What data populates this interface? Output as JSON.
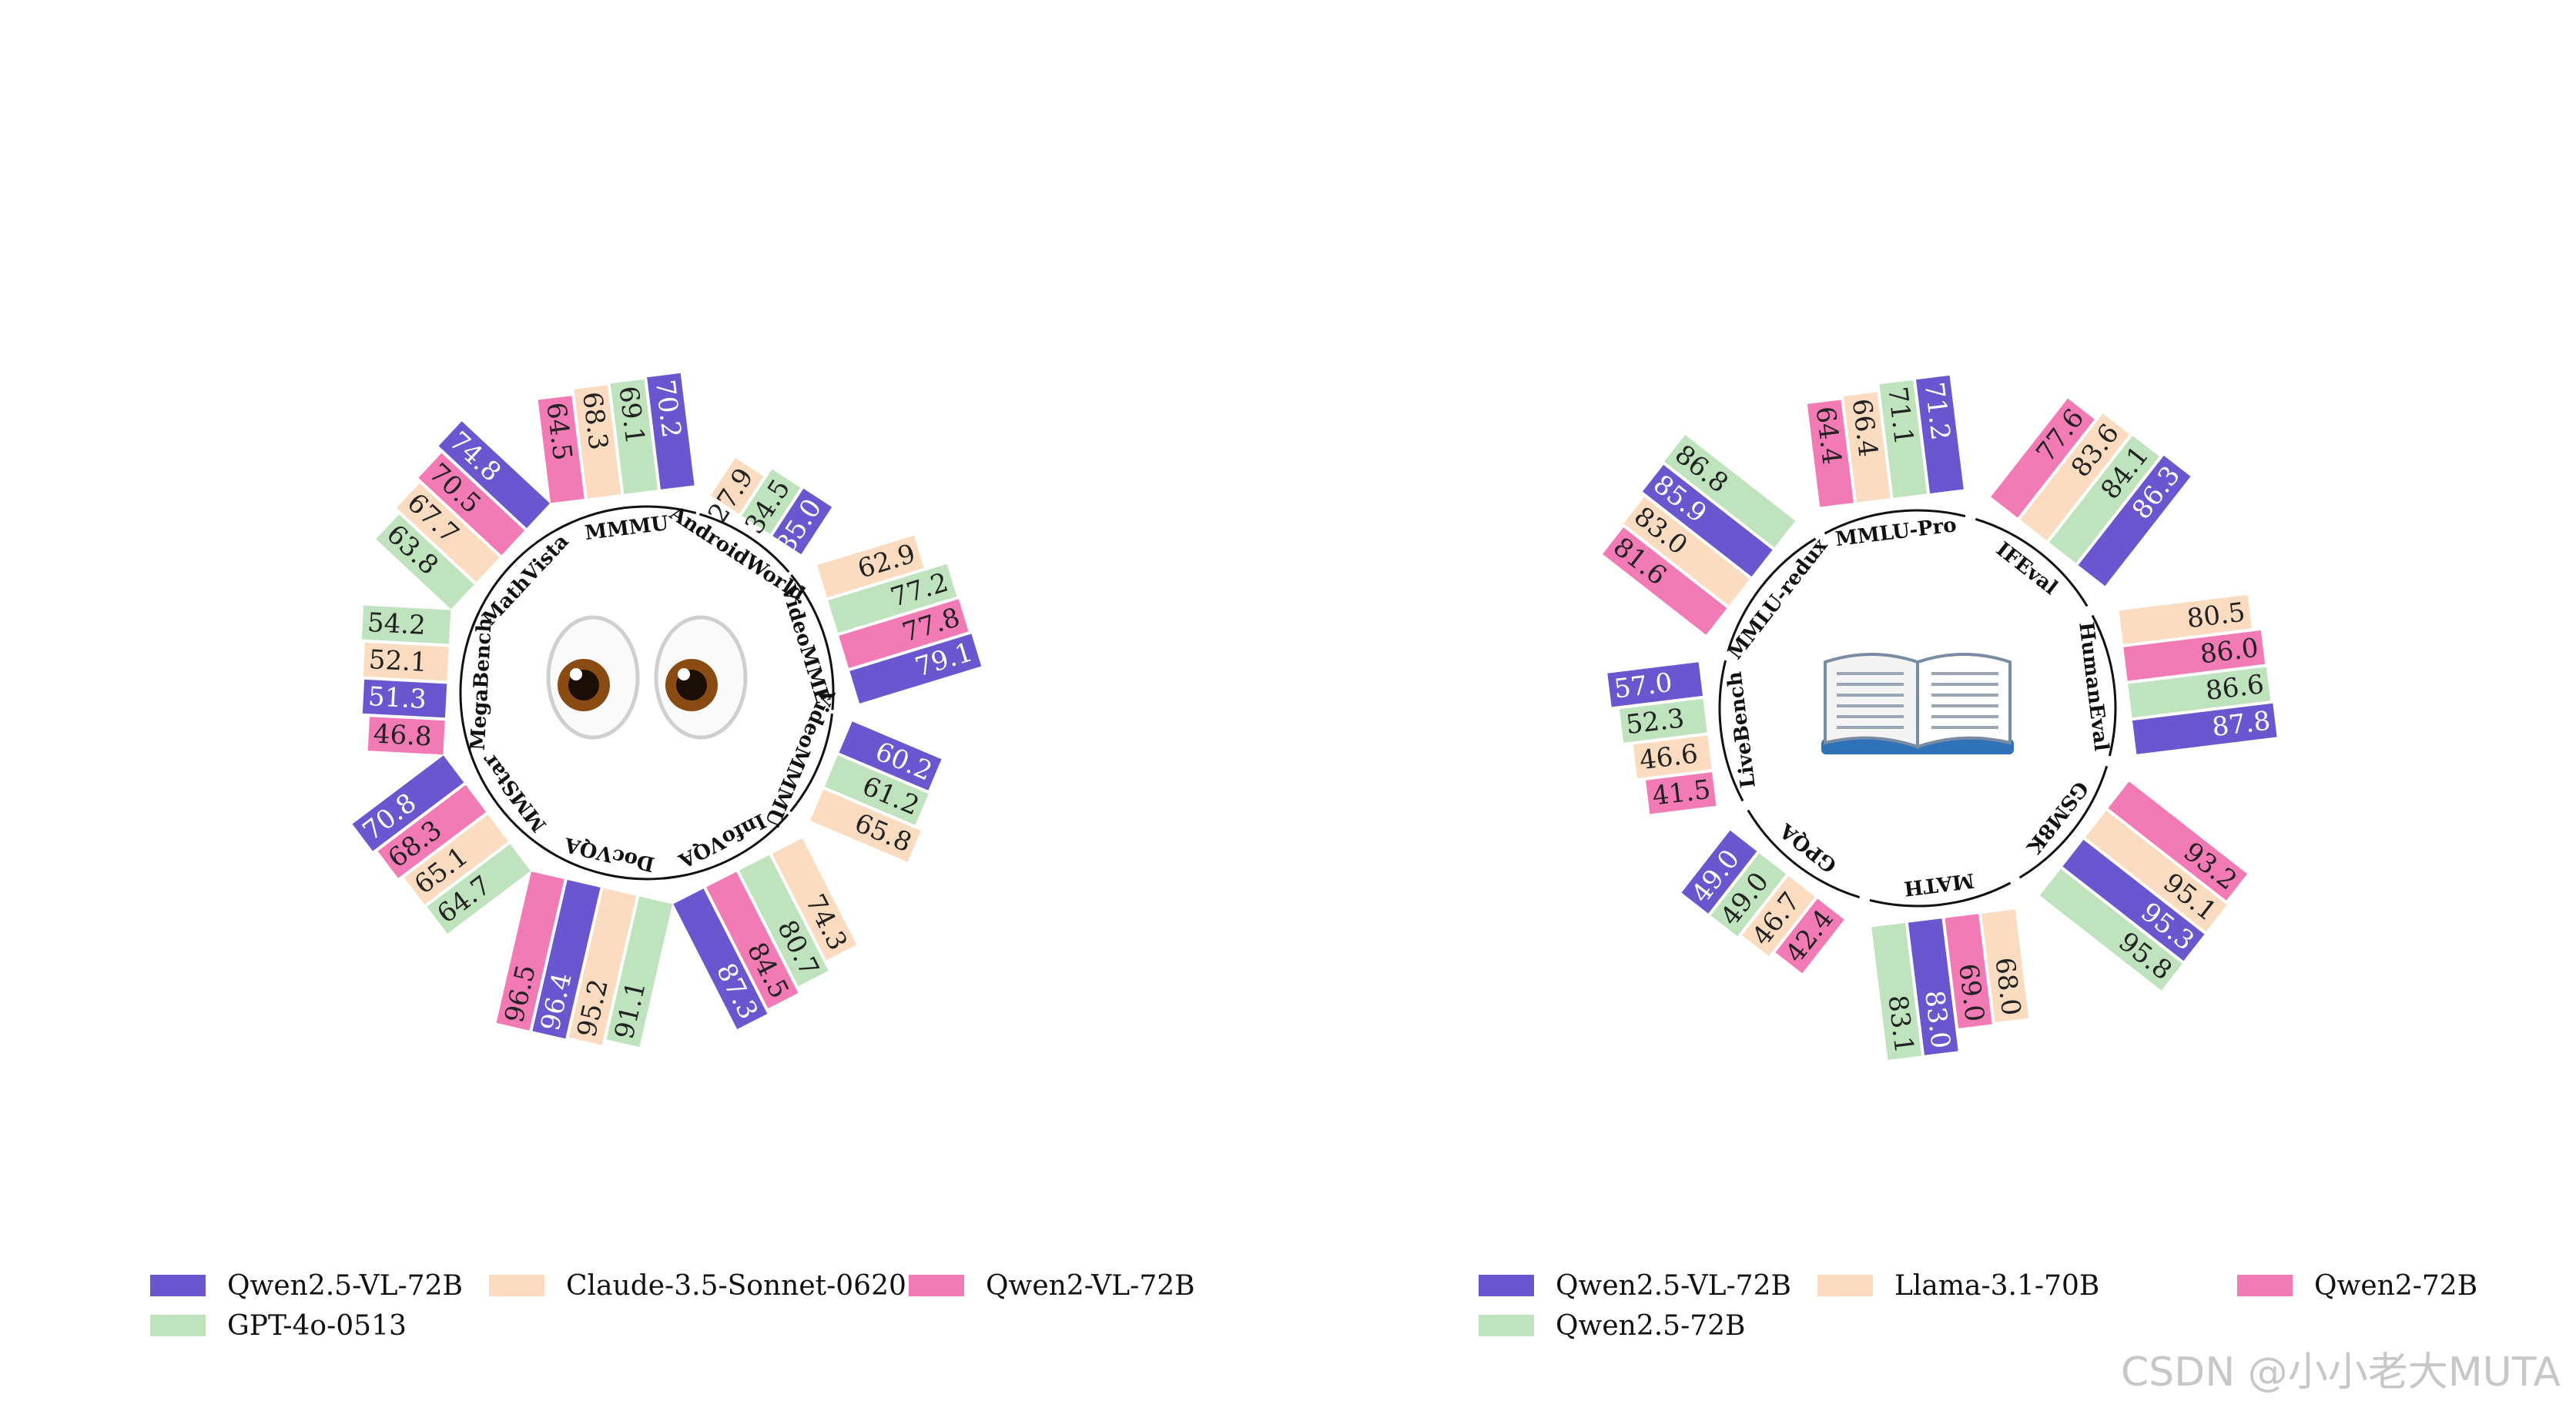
{
  "colors": {
    "purple": "#6a56cf",
    "green": "#bfe3bd",
    "peach": "#fbdcc0",
    "pink": "#f27ab5"
  },
  "chart_data": [
    {
      "type": "bar",
      "layout": "radial",
      "center_icon": "eyes-icon",
      "legend": [
        {
          "name": "Qwen2.5-VL-72B",
          "color": "#6a56cf"
        },
        {
          "name": "Claude-3.5-Sonnet-0620",
          "color": "#fbdcc0"
        },
        {
          "name": "Qwen2-VL-72B",
          "color": "#f27ab5"
        },
        {
          "name": "GPT-4o-0513",
          "color": "#bfe3bd"
        }
      ],
      "categories": [
        {
          "name": "MMMU",
          "bars": [
            {
              "model": "Qwen2-VL-72B",
              "value": 64.5,
              "color": "#f27ab5"
            },
            {
              "model": "Claude-3.5-Sonnet-0620",
              "value": 68.3,
              "color": "#fbdcc0"
            },
            {
              "model": "GPT-4o-0513",
              "value": 69.1,
              "color": "#bfe3bd"
            },
            {
              "model": "Qwen2.5-VL-72B",
              "value": 70.2,
              "color": "#6a56cf"
            }
          ]
        },
        {
          "name": "AndroidWorld",
          "bars": [
            {
              "model": "Claude-3.5-Sonnet-0620",
              "value": 27.9,
              "color": "#fbdcc0"
            },
            {
              "model": "GPT-4o-0513",
              "value": 34.5,
              "color": "#bfe3bd"
            },
            {
              "model": "Qwen2.5-VL-72B",
              "value": 35.0,
              "color": "#6a56cf"
            }
          ]
        },
        {
          "name": "VideoMME",
          "bars": [
            {
              "model": "Claude-3.5-Sonnet-0620",
              "value": 62.9,
              "color": "#fbdcc0"
            },
            {
              "model": "GPT-4o-0513",
              "value": 77.2,
              "color": "#bfe3bd"
            },
            {
              "model": "Qwen2-VL-72B",
              "value": 77.8,
              "color": "#f27ab5"
            },
            {
              "model": "Qwen2.5-VL-72B",
              "value": 79.1,
              "color": "#6a56cf"
            }
          ]
        },
        {
          "name": "VideoMMMU",
          "bars": [
            {
              "model": "Qwen2.5-VL-72B",
              "value": 60.2,
              "color": "#6a56cf"
            },
            {
              "model": "GPT-4o-0513",
              "value": 61.2,
              "color": "#bfe3bd"
            },
            {
              "model": "Claude-3.5-Sonnet-0620",
              "value": 65.8,
              "color": "#fbdcc0"
            }
          ]
        },
        {
          "name": "InfoVQA",
          "bars": [
            {
              "model": "Claude-3.5-Sonnet-0620",
              "value": 74.3,
              "color": "#fbdcc0"
            },
            {
              "model": "GPT-4o-0513",
              "value": 80.7,
              "color": "#bfe3bd"
            },
            {
              "model": "Qwen2-VL-72B",
              "value": 84.5,
              "color": "#f27ab5"
            },
            {
              "model": "Qwen2.5-VL-72B",
              "value": 87.3,
              "color": "#6a56cf"
            }
          ]
        },
        {
          "name": "DocVQA",
          "bars": [
            {
              "model": "GPT-4o-0513",
              "value": 91.1,
              "color": "#bfe3bd"
            },
            {
              "model": "Claude-3.5-Sonnet-0620",
              "value": 95.2,
              "color": "#fbdcc0"
            },
            {
              "model": "Qwen2.5-VL-72B",
              "value": 96.4,
              "color": "#6a56cf"
            },
            {
              "model": "Qwen2-VL-72B",
              "value": 96.5,
              "color": "#f27ab5"
            }
          ]
        },
        {
          "name": "MMStar",
          "bars": [
            {
              "model": "GPT-4o-0513",
              "value": 64.7,
              "color": "#bfe3bd"
            },
            {
              "model": "Claude-3.5-Sonnet-0620",
              "value": 65.1,
              "color": "#fbdcc0"
            },
            {
              "model": "Qwen2-VL-72B",
              "value": 68.3,
              "color": "#f27ab5"
            },
            {
              "model": "Qwen2.5-VL-72B",
              "value": 70.8,
              "color": "#6a56cf"
            }
          ]
        },
        {
          "name": "MegaBench",
          "bars": [
            {
              "model": "Qwen2-VL-72B",
              "value": 46.8,
              "color": "#f27ab5"
            },
            {
              "model": "Qwen2.5-VL-72B",
              "value": 51.3,
              "color": "#6a56cf"
            },
            {
              "model": "Claude-3.5-Sonnet-0620",
              "value": 52.1,
              "color": "#fbdcc0"
            },
            {
              "model": "GPT-4o-0513",
              "value": 54.2,
              "color": "#bfe3bd"
            }
          ]
        },
        {
          "name": "MathVista",
          "bars": [
            {
              "model": "GPT-4o-0513",
              "value": 63.8,
              "color": "#bfe3bd"
            },
            {
              "model": "Claude-3.5-Sonnet-0620",
              "value": 67.7,
              "color": "#fbdcc0"
            },
            {
              "model": "Qwen2-VL-72B",
              "value": 70.5,
              "color": "#f27ab5"
            },
            {
              "model": "Qwen2.5-VL-72B",
              "value": 74.8,
              "color": "#6a56cf"
            }
          ]
        }
      ]
    },
    {
      "type": "bar",
      "layout": "radial",
      "center_icon": "open-book-icon",
      "legend": [
        {
          "name": "Qwen2.5-VL-72B",
          "color": "#6a56cf"
        },
        {
          "name": "Llama-3.1-70B",
          "color": "#fbdcc0"
        },
        {
          "name": "Qwen2-72B",
          "color": "#f27ab5"
        },
        {
          "name": "Qwen2.5-72B",
          "color": "#bfe3bd"
        }
      ],
      "categories": [
        {
          "name": "MMLU-Pro",
          "bars": [
            {
              "model": "Qwen2-72B",
              "value": 64.4,
              "color": "#f27ab5"
            },
            {
              "model": "Llama-3.1-70B",
              "value": 66.4,
              "color": "#fbdcc0"
            },
            {
              "model": "Qwen2.5-72B",
              "value": 71.1,
              "color": "#bfe3bd"
            },
            {
              "model": "Qwen2.5-VL-72B",
              "value": 71.2,
              "color": "#6a56cf"
            }
          ]
        },
        {
          "name": "IFEval",
          "bars": [
            {
              "model": "Qwen2-72B",
              "value": 77.6,
              "color": "#f27ab5"
            },
            {
              "model": "Llama-3.1-70B",
              "value": 83.6,
              "color": "#fbdcc0"
            },
            {
              "model": "Qwen2.5-72B",
              "value": 84.1,
              "color": "#bfe3bd"
            },
            {
              "model": "Qwen2.5-VL-72B",
              "value": 86.3,
              "color": "#6a56cf"
            }
          ]
        },
        {
          "name": "HumanEval",
          "bars": [
            {
              "model": "Llama-3.1-70B",
              "value": 80.5,
              "color": "#fbdcc0"
            },
            {
              "model": "Qwen2-72B",
              "value": 86.0,
              "color": "#f27ab5"
            },
            {
              "model": "Qwen2.5-72B",
              "value": 86.6,
              "color": "#bfe3bd"
            },
            {
              "model": "Qwen2.5-VL-72B",
              "value": 87.8,
              "color": "#6a56cf"
            }
          ]
        },
        {
          "name": "GSM8K",
          "bars": [
            {
              "model": "Qwen2-72B",
              "value": 93.2,
              "color": "#f27ab5"
            },
            {
              "model": "Llama-3.1-70B",
              "value": 95.1,
              "color": "#fbdcc0"
            },
            {
              "model": "Qwen2.5-VL-72B",
              "value": 95.3,
              "color": "#6a56cf"
            },
            {
              "model": "Qwen2.5-72B",
              "value": 95.8,
              "color": "#bfe3bd"
            }
          ]
        },
        {
          "name": "MATH",
          "bars": [
            {
              "model": "Llama-3.1-70B",
              "value": 68.0,
              "color": "#fbdcc0"
            },
            {
              "model": "Qwen2-72B",
              "value": 69.0,
              "color": "#f27ab5"
            },
            {
              "model": "Qwen2.5-VL-72B",
              "value": 83.0,
              "color": "#6a56cf"
            },
            {
              "model": "Qwen2.5-72B",
              "value": 83.1,
              "color": "#bfe3bd"
            }
          ]
        },
        {
          "name": "GPQA",
          "bars": [
            {
              "model": "Qwen2-72B",
              "value": 42.4,
              "color": "#f27ab5"
            },
            {
              "model": "Llama-3.1-70B",
              "value": 46.7,
              "color": "#fbdcc0"
            },
            {
              "model": "Qwen2.5-72B",
              "value": 49.0,
              "color": "#bfe3bd"
            },
            {
              "model": "Qwen2.5-VL-72B",
              "value": 49.0,
              "color": "#6a56cf"
            }
          ]
        },
        {
          "name": "LiveBench",
          "bars": [
            {
              "model": "Qwen2-72B",
              "value": 41.5,
              "color": "#f27ab5"
            },
            {
              "model": "Llama-3.1-70B",
              "value": 46.6,
              "color": "#fbdcc0"
            },
            {
              "model": "Qwen2.5-72B",
              "value": 52.3,
              "color": "#bfe3bd"
            },
            {
              "model": "Qwen2.5-VL-72B",
              "value": 57.0,
              "color": "#6a56cf"
            }
          ]
        },
        {
          "name": "MMLU-redux",
          "bars": [
            {
              "model": "Qwen2-72B",
              "value": 81.6,
              "color": "#f27ab5"
            },
            {
              "model": "Llama-3.1-70B",
              "value": 83.0,
              "color": "#fbdcc0"
            },
            {
              "model": "Qwen2.5-VL-72B",
              "value": 85.9,
              "color": "#6a56cf"
            },
            {
              "model": "Qwen2.5-72B",
              "value": 86.8,
              "color": "#bfe3bd"
            }
          ]
        }
      ]
    }
  ],
  "watermark": "CSDN @小小老大MUTA"
}
